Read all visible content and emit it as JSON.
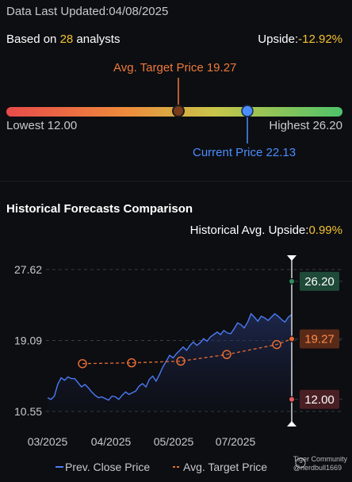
{
  "header": {
    "updated_label": "Data Last Updated:",
    "updated_date": "04/08/2025",
    "based_prefix": "Based on ",
    "analyst_count": "28",
    "based_suffix": " analysts",
    "upside_label": "Upside:",
    "upside_value": "-12.92%"
  },
  "range": {
    "avg_target_label": "Avg. Target Price 19.27",
    "lowest_label": "Lowest 12.00",
    "highest_label": "Highest 26.20",
    "current_label": "Current Price 22.13",
    "low": 12.0,
    "high": 26.2,
    "avg_target": 19.27,
    "current": 22.13
  },
  "history": {
    "title": "Historical Forecasts Comparison",
    "upside_label": "Historical Avg. Upside:",
    "upside_value": "0.99%"
  },
  "chart_data": {
    "type": "line",
    "y_ticks": [
      "27.62",
      "19.09",
      "10.55"
    ],
    "ylim": [
      10.55,
      27.62
    ],
    "x_ticks": [
      "03/2025",
      "04/2025",
      "05/2025",
      "07/2025"
    ],
    "right_labels": [
      {
        "text": "26.20",
        "value": 26.2,
        "color": "#2f8f5a"
      },
      {
        "text": "19.27",
        "value": 19.27,
        "color": "#e46c33"
      },
      {
        "text": "12.00",
        "value": 12.0,
        "color": "#e55a5a"
      }
    ],
    "series": [
      {
        "name": "Prev. Close Price",
        "color": "#4b7bf5",
        "values": [
          12.2,
          12.0,
          12.4,
          13.8,
          14.6,
          14.3,
          14.7,
          14.5,
          14.5,
          14.0,
          13.5,
          13.8,
          13.4,
          12.9,
          12.5,
          12.2,
          12.3,
          12.1,
          11.9,
          12.4,
          12.3,
          12.0,
          12.5,
          12.9,
          12.6,
          12.8,
          13.0,
          13.6,
          13.9,
          13.5,
          14.4,
          14.8,
          14.2,
          15.0,
          15.9,
          16.6,
          17.3,
          17.0,
          17.5,
          17.9,
          18.3,
          17.9,
          18.5,
          18.9,
          18.5,
          18.8,
          19.3,
          19.0,
          19.5,
          19.8,
          20.1,
          19.8,
          20.3,
          20.0,
          19.9,
          20.5,
          21.2,
          21.0,
          20.6,
          21.3,
          22.3,
          21.9,
          21.4,
          22.0,
          21.8,
          21.5,
          21.9,
          22.3,
          22.0,
          21.6,
          21.3,
          21.9,
          22.2
        ]
      },
      {
        "name": "Avg. Target Price",
        "color": "#e46c33",
        "values": [
          16.3,
          16.4,
          16.6,
          17.4,
          18.6,
          19.3,
          19.27
        ]
      }
    ],
    "legend": [
      "Prev. Close Price",
      "Avg. Target Price"
    ]
  },
  "footer": {
    "brand_line1": "Tiger Community",
    "brand_line2": "@nerdbull1669"
  }
}
